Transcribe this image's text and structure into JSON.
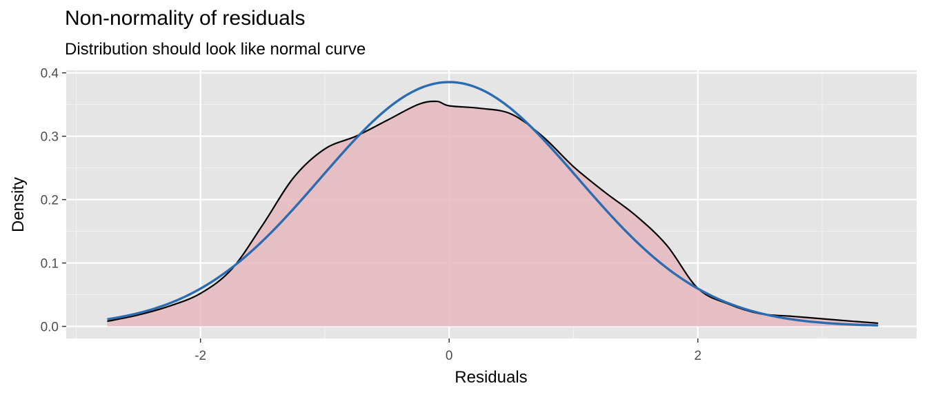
{
  "chart_data": {
    "type": "area",
    "title": "Non-normality of residuals",
    "subtitle": "Distribution should look like normal curve",
    "xlabel": "Residuals",
    "ylabel": "Density",
    "xlim": [
      -3.08,
      3.76
    ],
    "ylim": [
      -0.019,
      0.404
    ],
    "x_ticks": [
      -2,
      0,
      2
    ],
    "x_tick_labels": [
      "-2",
      "0",
      "2"
    ],
    "y_ticks": [
      0.0,
      0.1,
      0.2,
      0.3,
      0.4
    ],
    "y_tick_labels": [
      "0.0",
      "0.1",
      "0.2",
      "0.3",
      "0.4"
    ],
    "grid": true,
    "series": [
      {
        "type": "density-area",
        "color": "#000000",
        "fill": "#e6b8c0",
        "x": [
          -2.75,
          -2.5,
          -2.25,
          -2.0,
          -1.75,
          -1.5,
          -1.25,
          -1.0,
          -0.75,
          -0.5,
          -0.25,
          -0.1,
          0.0,
          0.25,
          0.5,
          0.75,
          1.0,
          1.25,
          1.5,
          1.75,
          2.0,
          2.25,
          2.5,
          2.75,
          3.0,
          3.25,
          3.45
        ],
        "y": [
          0.008,
          0.018,
          0.032,
          0.052,
          0.09,
          0.16,
          0.235,
          0.28,
          0.3,
          0.325,
          0.35,
          0.355,
          0.348,
          0.344,
          0.335,
          0.3,
          0.252,
          0.212,
          0.175,
          0.128,
          0.06,
          0.035,
          0.02,
          0.016,
          0.012,
          0.008,
          0.005
        ]
      },
      {
        "type": "normal-curve",
        "color": "#2b6cb0",
        "mean": 0,
        "sd": 1.035,
        "x_range": [
          -2.75,
          3.45
        ]
      }
    ]
  }
}
